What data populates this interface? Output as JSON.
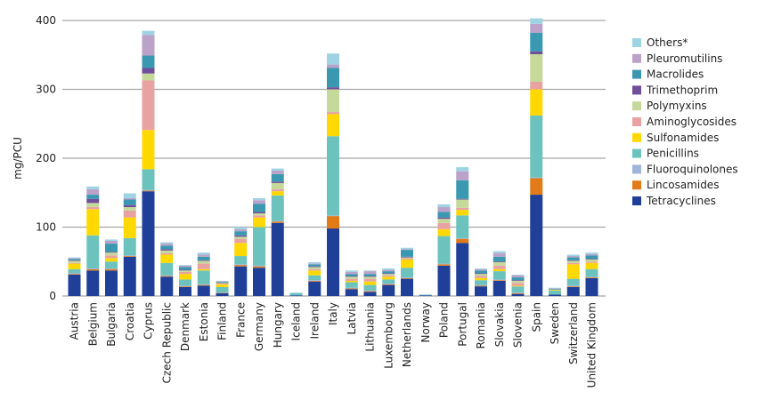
{
  "chart_data": {
    "type": "bar",
    "stacked": true,
    "title": "",
    "xlabel": "",
    "ylabel": "mg/PCU",
    "ylim": [
      0,
      400
    ],
    "yticks": [
      0,
      100,
      200,
      300,
      400
    ],
    "grid": true,
    "legend_position": "right",
    "categories": [
      "Austria",
      "Belgium",
      "Bulgaria",
      "Croatia",
      "Cyprus",
      "Czech Republic",
      "Denmark",
      "Estonia",
      "Finland",
      "France",
      "Germany",
      "Hungary",
      "Iceland",
      "Ireland",
      "Italy",
      "Latvia",
      "Lithuania",
      "Luxembourg",
      "Netherlands",
      "Norway",
      "Poland",
      "Portugal",
      "Romania",
      "Slovakia",
      "Slovenia",
      "Spain",
      "Sweden",
      "Switzerland",
      "United Kingdom"
    ],
    "series": [
      {
        "name": "Tetracyclines",
        "color": "#1f3f99",
        "values": [
          31,
          37,
          37,
          57,
          152,
          28,
          13,
          15,
          4,
          43,
          41,
          106,
          1,
          21,
          98,
          10,
          6,
          16,
          25,
          1,
          44,
          77,
          14,
          22,
          3,
          147,
          2,
          13,
          26
        ]
      },
      {
        "name": "Lincosamides",
        "color": "#e07b18",
        "values": [
          1,
          2,
          2,
          1,
          1,
          1,
          1,
          1,
          0.5,
          2,
          2,
          2,
          0,
          1,
          18,
          1,
          1,
          1,
          1,
          0,
          2,
          6,
          1,
          1,
          1,
          24,
          0,
          1,
          1
        ]
      },
      {
        "name": "Fluoroquinolones",
        "color": "#9eb4d8",
        "values": [
          1,
          1,
          1,
          1,
          1,
          1,
          1,
          1,
          0.5,
          1,
          1,
          1,
          0,
          1,
          1,
          1,
          1,
          1,
          1,
          0,
          1,
          1,
          1,
          1,
          1,
          1,
          0,
          1,
          1
        ]
      },
      {
        "name": "Penicillins",
        "color": "#6cc3be",
        "values": [
          6,
          48,
          10,
          25,
          30,
          18,
          9,
          20,
          8,
          12,
          56,
          37,
          3,
          7,
          115,
          8,
          8,
          6,
          14,
          1,
          40,
          33,
          7,
          12,
          9,
          90,
          6,
          10,
          11
        ]
      },
      {
        "name": "Sulfonamides",
        "color": "#ffd800",
        "values": [
          8,
          38,
          5,
          30,
          57,
          12,
          8,
          2,
          4,
          19,
          14,
          6,
          0,
          7,
          32,
          2,
          5,
          4,
          12,
          0,
          10,
          8,
          3,
          3,
          1,
          38,
          1,
          21,
          9
        ]
      },
      {
        "name": "Aminoglycosides",
        "color": "#e8a2a2",
        "values": [
          1,
          3,
          4,
          10,
          72,
          2,
          3,
          8,
          1,
          6,
          3,
          3,
          0,
          2,
          3,
          3,
          4,
          2,
          2,
          0,
          9,
          3,
          3,
          5,
          4,
          11,
          0,
          2,
          2
        ]
      },
      {
        "name": "Polymyxins",
        "color": "#c5d99a",
        "values": [
          3,
          6,
          4,
          5,
          10,
          4,
          2,
          4,
          1,
          3,
          3,
          9,
          0,
          3,
          33,
          3,
          3,
          2,
          1,
          0,
          6,
          12,
          3,
          5,
          3,
          40,
          0,
          3,
          3
        ]
      },
      {
        "name": "Trimethoprim",
        "color": "#6f4e9a",
        "values": [
          1,
          6,
          1,
          3,
          8,
          2,
          1,
          1,
          0.5,
          2,
          2,
          2,
          0,
          1,
          3,
          1,
          1,
          1,
          1,
          0,
          2,
          1,
          1,
          1,
          1,
          4,
          0,
          1,
          1
        ]
      },
      {
        "name": "Macrolides",
        "color": "#3a98b0",
        "values": [
          2,
          6,
          12,
          8,
          18,
          5,
          4,
          5,
          1,
          6,
          12,
          11,
          0,
          3,
          28,
          3,
          3,
          3,
          10,
          0,
          8,
          27,
          4,
          7,
          4,
          27,
          1,
          4,
          5
        ]
      },
      {
        "name": "Pleuromutilins",
        "color": "#bba2c8",
        "values": [
          1,
          8,
          4,
          2,
          30,
          3,
          2,
          3,
          1,
          3,
          5,
          5,
          0,
          1,
          5,
          3,
          4,
          2,
          1,
          0,
          7,
          13,
          2,
          5,
          3,
          13,
          1,
          2,
          2
        ]
      },
      {
        "name": "Others*",
        "color": "#9ed3e4",
        "values": [
          1,
          4,
          2,
          7,
          6,
          2,
          1,
          3,
          0.5,
          3,
          3,
          3,
          1,
          2,
          16,
          2,
          1,
          2,
          2,
          0,
          4,
          6,
          1,
          3,
          1,
          8,
          1,
          2,
          2
        ]
      }
    ]
  }
}
